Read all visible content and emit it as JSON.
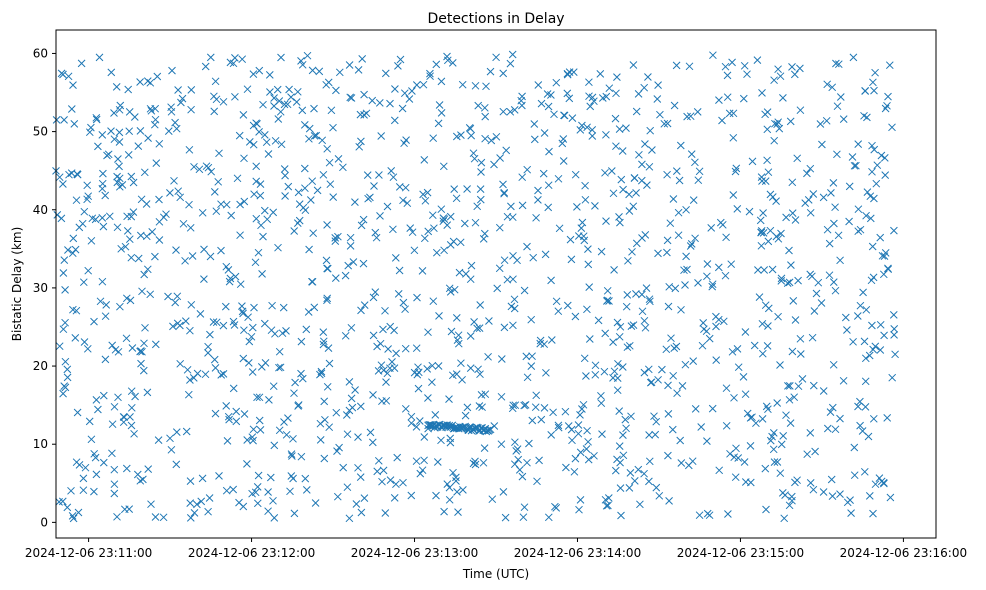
{
  "chart_data": {
    "type": "scatter",
    "title": "Detections in Delay",
    "xlabel": "Time (UTC)",
    "ylabel": "Bistatic Delay (km)",
    "marker": "x",
    "color": "#1f77b4",
    "x_time_range": [
      "2024-12-06 23:10:48",
      "2024-12-06 23:15:57"
    ],
    "ylim": [
      -2,
      63
    ],
    "x_ticks": [
      "2024-12-06 23:11:00",
      "2024-12-06 23:12:00",
      "2024-12-06 23:13:00",
      "2024-12-06 23:14:00",
      "2024-12-06 23:15:00",
      "2024-12-06 23:16:00"
    ],
    "y_ticks": [
      0,
      10,
      20,
      30,
      40,
      50,
      60
    ],
    "grid": false,
    "legend": "none",
    "point_count_approx": 1500,
    "sample_points": [
      {
        "t": "2024-12-06 23:10:51",
        "y": 51.5
      },
      {
        "t": "2024-12-06 23:10:56",
        "y": 44.5
      },
      {
        "t": "2024-12-06 23:11:04",
        "y": 59.5
      },
      {
        "t": "2024-12-06 23:11:12",
        "y": 35.0
      },
      {
        "t": "2024-12-06 23:11:20",
        "y": 5.5
      },
      {
        "t": "2024-12-06 23:11:45",
        "y": 59.5
      },
      {
        "t": "2024-12-06 23:12:02",
        "y": 16.0
      },
      {
        "t": "2024-12-06 23:12:30",
        "y": 50.5
      },
      {
        "t": "2024-12-06 23:12:48",
        "y": 15.5
      },
      {
        "t": "2024-12-06 23:13:05",
        "y": 12.0
      },
      {
        "t": "2024-12-06 23:13:20",
        "y": 11.8
      },
      {
        "t": "2024-12-06 23:13:32",
        "y": 10.0
      },
      {
        "t": "2024-12-06 23:13:58",
        "y": 10.5
      },
      {
        "t": "2024-12-06 23:14:40",
        "y": 40.0
      },
      {
        "t": "2024-12-06 23:15:10",
        "y": 52.5
      },
      {
        "t": "2024-12-06 23:15:40",
        "y": 38.5
      },
      {
        "t": "2024-12-06 23:15:55",
        "y": 58.5
      }
    ],
    "dense_band": {
      "t_start": "2024-12-06 23:13:05",
      "t_end": "2024-12-06 23:13:28",
      "y_start": 12.4,
      "y_end": 11.8
    }
  }
}
